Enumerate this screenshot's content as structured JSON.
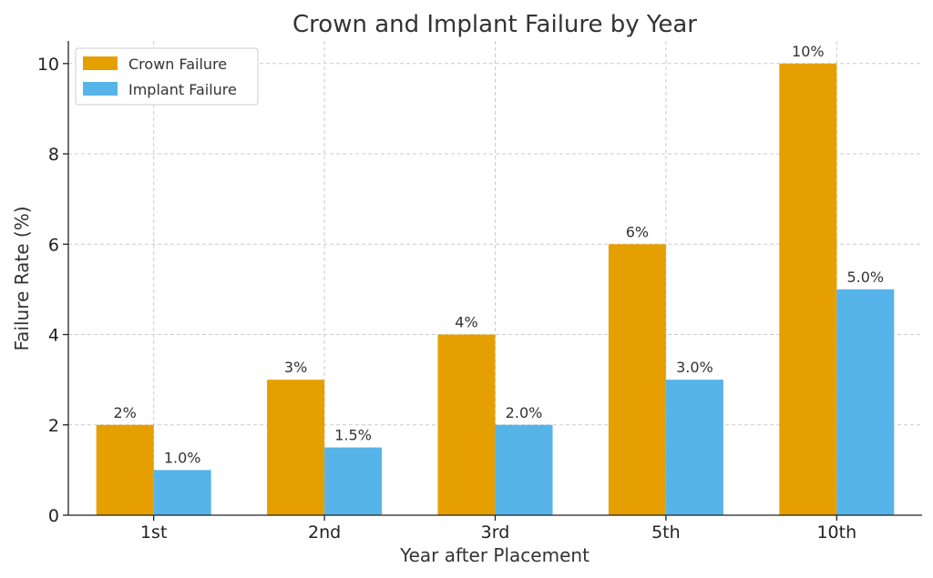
{
  "chart_data": {
    "type": "bar",
    "title": "Crown and Implant Failure by Year",
    "xlabel": "Year after Placement",
    "ylabel": "Failure Rate (%)",
    "categories": [
      "1st",
      "2nd",
      "3rd",
      "5th",
      "10th"
    ],
    "ylim": [
      0,
      10.5
    ],
    "yticks": [
      "0",
      "2",
      "4",
      "6",
      "8",
      "10"
    ],
    "grid": true,
    "legend_position": "top-left",
    "series": [
      {
        "name": "Crown Failure",
        "color": "#E69F00",
        "values": [
          2,
          3,
          4,
          6,
          10
        ],
        "labels": [
          "2%",
          "3%",
          "4%",
          "6%",
          "10%"
        ]
      },
      {
        "name": "Implant Failure",
        "color": "#56B4E9",
        "values": [
          1.0,
          1.5,
          2.0,
          3.0,
          5.0
        ],
        "labels": [
          "1.0%",
          "1.5%",
          "2.0%",
          "3.0%",
          "5.0%"
        ]
      }
    ]
  }
}
